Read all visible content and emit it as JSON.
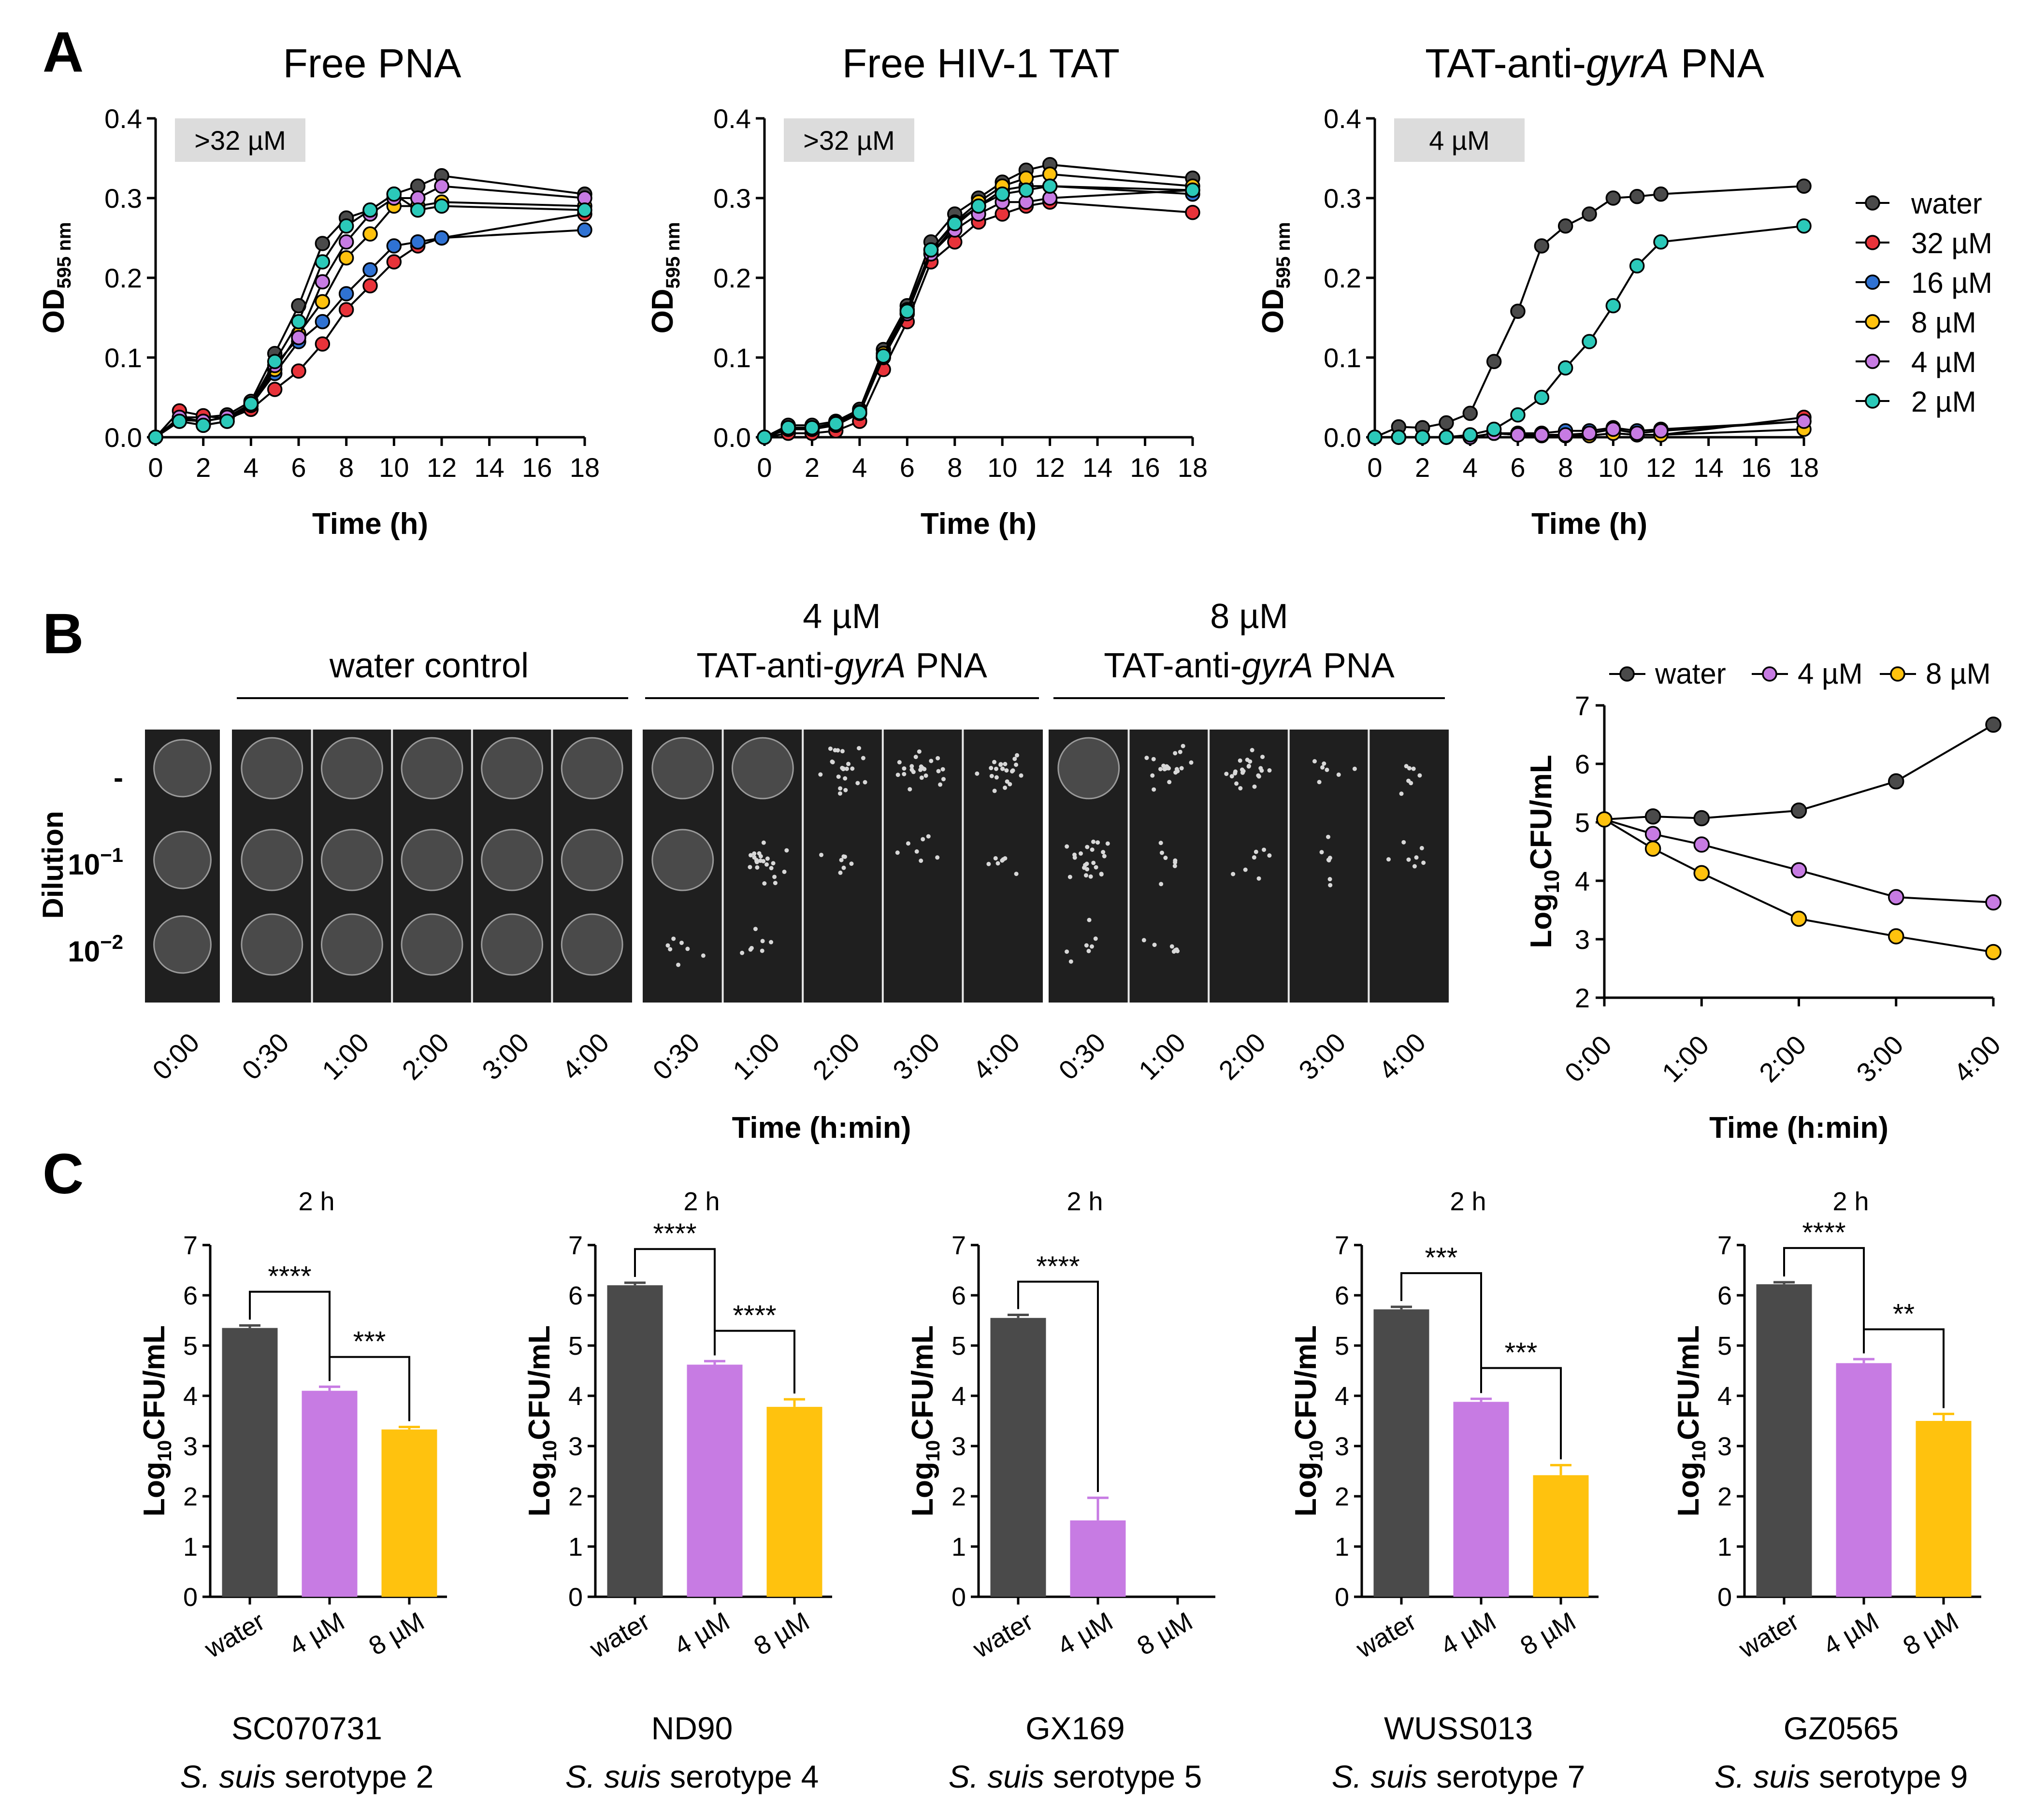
{
  "panels": {
    "A": "A",
    "B": "B",
    "C": "C"
  },
  "colors": {
    "water": "#4a4a4a",
    "c32": "#e8333a",
    "c16": "#2f72d3",
    "c8": "#ffc20e",
    "c4": "#c77be3",
    "c2": "#2bc9b9",
    "axis": "#000000",
    "micbox": "#dcdcdc",
    "plate": "#1f1f1f"
  },
  "legend_A": [
    "water",
    "32 µM",
    "16 µM",
    "8 µM",
    "4 µM",
    "2 µM"
  ],
  "chart_data": [
    {
      "id": "A1",
      "type": "line",
      "title": "Free PNA",
      "annotation": ">32 µM",
      "ylabel_main": "OD",
      "ylabel_sub": "595 nm",
      "xlabel": "Time (h)",
      "x": [
        0,
        1,
        2,
        3,
        4,
        5,
        6,
        7,
        8,
        9,
        10,
        11,
        12,
        18
      ],
      "xticks": [
        0,
        2,
        4,
        6,
        8,
        10,
        12,
        14,
        16,
        18
      ],
      "xlim": [
        0,
        18
      ],
      "ylim": [
        0,
        0.4
      ],
      "yticks": [
        0.0,
        0.1,
        0.2,
        0.3,
        0.4
      ],
      "ytick_labels": [
        "0.0",
        "0.1",
        "0.2",
        "0.3",
        "0.4"
      ],
      "series": [
        {
          "name": "water",
          "values": [
            0,
            0.025,
            0.025,
            0.028,
            0.045,
            0.105,
            0.165,
            0.243,
            0.275,
            0.285,
            0.305,
            0.315,
            0.328,
            0.305
          ]
        },
        {
          "name": "32 µM",
          "values": [
            0,
            0.033,
            0.027,
            0.023,
            0.035,
            0.06,
            0.083,
            0.117,
            0.16,
            0.19,
            0.22,
            0.24,
            0.25,
            0.28
          ]
        },
        {
          "name": "16 µM",
          "values": [
            0,
            0.02,
            0.015,
            0.02,
            0.04,
            0.08,
            0.12,
            0.145,
            0.18,
            0.21,
            0.24,
            0.245,
            0.25,
            0.26
          ]
        },
        {
          "name": "8 µM",
          "values": [
            0,
            0.022,
            0.02,
            0.025,
            0.04,
            0.085,
            0.13,
            0.17,
            0.225,
            0.255,
            0.29,
            0.29,
            0.295,
            0.29
          ]
        },
        {
          "name": "4 µM",
          "values": [
            0,
            0.025,
            0.02,
            0.025,
            0.042,
            0.09,
            0.125,
            0.195,
            0.245,
            0.28,
            0.3,
            0.3,
            0.315,
            0.3
          ]
        },
        {
          "name": "2 µM",
          "values": [
            0,
            0.02,
            0.015,
            0.02,
            0.042,
            0.095,
            0.145,
            0.22,
            0.265,
            0.285,
            0.305,
            0.285,
            0.29,
            0.285
          ]
        }
      ]
    },
    {
      "id": "A2",
      "type": "line",
      "title": "Free HIV-1 TAT",
      "annotation": ">32 µM",
      "ylabel_main": "OD",
      "ylabel_sub": "595 nm",
      "xlabel": "Time (h)",
      "x": [
        0,
        1,
        2,
        3,
        4,
        5,
        6,
        7,
        8,
        9,
        10,
        11,
        12,
        18
      ],
      "xticks": [
        0,
        2,
        4,
        6,
        8,
        10,
        12,
        14,
        16,
        18
      ],
      "xlim": [
        0,
        18
      ],
      "ylim": [
        0,
        0.4
      ],
      "yticks": [
        0.0,
        0.1,
        0.2,
        0.3,
        0.4
      ],
      "ytick_labels": [
        "0.0",
        "0.1",
        "0.2",
        "0.3",
        "0.4"
      ],
      "series": [
        {
          "name": "water",
          "values": [
            0,
            0.015,
            0.015,
            0.02,
            0.035,
            0.11,
            0.165,
            0.245,
            0.28,
            0.3,
            0.32,
            0.335,
            0.342,
            0.325
          ]
        },
        {
          "name": "32 µM",
          "values": [
            0,
            0.005,
            0.005,
            0.008,
            0.02,
            0.085,
            0.145,
            0.22,
            0.245,
            0.27,
            0.28,
            0.29,
            0.295,
            0.282
          ]
        },
        {
          "name": "16 µM",
          "values": [
            0,
            0.01,
            0.01,
            0.015,
            0.03,
            0.1,
            0.155,
            0.23,
            0.265,
            0.29,
            0.31,
            0.315,
            0.315,
            0.305
          ]
        },
        {
          "name": "8 µM",
          "values": [
            0,
            0.012,
            0.012,
            0.018,
            0.032,
            0.105,
            0.16,
            0.235,
            0.27,
            0.295,
            0.315,
            0.325,
            0.33,
            0.315
          ]
        },
        {
          "name": "4 µM",
          "values": [
            0,
            0.01,
            0.01,
            0.015,
            0.03,
            0.1,
            0.155,
            0.23,
            0.26,
            0.28,
            0.295,
            0.295,
            0.3,
            0.31
          ]
        },
        {
          "name": "2 µM",
          "values": [
            0,
            0.012,
            0.012,
            0.017,
            0.031,
            0.102,
            0.158,
            0.235,
            0.268,
            0.29,
            0.305,
            0.31,
            0.315,
            0.31
          ]
        }
      ]
    },
    {
      "id": "A3",
      "type": "line",
      "title": "TAT-anti-gyrA PNA",
      "title_parts": [
        "TAT-anti-",
        "gyrA",
        " PNA"
      ],
      "annotation": "4 µM",
      "ylabel_main": "OD",
      "ylabel_sub": "595 nm",
      "xlabel": "Time (h)",
      "x": [
        0,
        1,
        2,
        3,
        4,
        5,
        6,
        7,
        8,
        9,
        10,
        11,
        12,
        18
      ],
      "xticks": [
        0,
        2,
        4,
        6,
        8,
        10,
        12,
        14,
        16,
        18
      ],
      "xlim": [
        0,
        18
      ],
      "ylim": [
        0,
        0.4
      ],
      "yticks": [
        0.0,
        0.1,
        0.2,
        0.3,
        0.4
      ],
      "ytick_labels": [
        "0.0",
        "0.1",
        "0.2",
        "0.3",
        "0.4"
      ],
      "series": [
        {
          "name": "water",
          "values": [
            0,
            0.013,
            0.012,
            0.018,
            0.03,
            0.095,
            0.158,
            0.24,
            0.265,
            0.28,
            0.3,
            0.302,
            0.305,
            0.315
          ]
        },
        {
          "name": "32 µM",
          "values": [
            0,
            0.0,
            0.0,
            0.0,
            0.0,
            0.005,
            0.003,
            0.003,
            0.002,
            0.002,
            0.005,
            0.003,
            0.003,
            0.025
          ]
        },
        {
          "name": "16 µM",
          "values": [
            0,
            0.0,
            0.0,
            0.0,
            0.0,
            0.005,
            0.005,
            0.005,
            0.008,
            0.008,
            0.012,
            0.008,
            0.01,
            0.02
          ]
        },
        {
          "name": "8 µM",
          "values": [
            0,
            0.0,
            0.0,
            0.0,
            0.0,
            0.005,
            0.003,
            0.002,
            0.002,
            0.002,
            0.005,
            0.003,
            0.003,
            0.01
          ]
        },
        {
          "name": "4 µM",
          "values": [
            0,
            0.0,
            0.0,
            0.0,
            0.0,
            0.005,
            0.003,
            0.003,
            0.003,
            0.005,
            0.01,
            0.005,
            0.008,
            0.02
          ]
        },
        {
          "name": "2 µM",
          "values": [
            0,
            0.0,
            0.0,
            0.0,
            0.003,
            0.01,
            0.028,
            0.05,
            0.087,
            0.12,
            0.165,
            0.215,
            0.245,
            0.265
          ]
        }
      ]
    },
    {
      "id": "B",
      "type": "line",
      "ylabel_main": "Log",
      "ylabel_sub": "10",
      "ylabel_rest": "CFU/mL",
      "xlabel": "Time (h:min)",
      "x": [
        0,
        0.5,
        1,
        2,
        3,
        4
      ],
      "xticks": [
        0,
        1,
        2,
        3,
        4
      ],
      "xtick_labels": [
        "0:00",
        "1:00",
        "2:00",
        "3:00",
        "4:00"
      ],
      "xlim": [
        0,
        4
      ],
      "ylim": [
        2,
        7
      ],
      "yticks": [
        2,
        3,
        4,
        5,
        6,
        7
      ],
      "ytick_labels": [
        "2",
        "3",
        "4",
        "5",
        "6",
        "7"
      ],
      "legend": [
        "water",
        "4 µM",
        "8 µM"
      ],
      "series": [
        {
          "name": "water",
          "values": [
            5.05,
            5.1,
            5.07,
            5.2,
            5.7,
            6.67
          ]
        },
        {
          "name": "4 µM",
          "values": [
            5.05,
            4.8,
            4.62,
            4.18,
            3.72,
            3.63
          ]
        },
        {
          "name": "8 µM",
          "values": [
            5.05,
            4.55,
            4.13,
            3.35,
            3.05,
            2.78
          ]
        }
      ]
    },
    {
      "id": "C1",
      "type": "bar",
      "title": "2 h",
      "strain": "SC070731",
      "serotype": "serotype 2",
      "ylabel_main": "Log",
      "ylabel_sub": "10",
      "ylabel_rest": "CFU/mL",
      "categories": [
        "water",
        "4 µM",
        "8 µM"
      ],
      "values": [
        5.35,
        4.1,
        3.33
      ],
      "errors": [
        0.05,
        0.08,
        0.05
      ],
      "ylim": [
        0,
        7
      ],
      "yticks": [
        0,
        1,
        2,
        3,
        4,
        5,
        6,
        7
      ],
      "ytick_labels": [
        "0",
        "1",
        "2",
        "3",
        "4",
        "5",
        "6",
        "7"
      ],
      "significance": [
        {
          "from": 0,
          "to": 1,
          "label": "****"
        },
        {
          "from": 1,
          "to": 2,
          "label": "***"
        }
      ]
    },
    {
      "id": "C2",
      "type": "bar",
      "title": "2 h",
      "strain": "ND90",
      "serotype": "serotype 4",
      "ylabel_main": "Log",
      "ylabel_sub": "10",
      "ylabel_rest": "CFU/mL",
      "categories": [
        "water",
        "4 µM",
        "8 µM"
      ],
      "values": [
        6.2,
        4.62,
        3.78
      ],
      "errors": [
        0.05,
        0.07,
        0.15
      ],
      "ylim": [
        0,
        7
      ],
      "yticks": [
        0,
        1,
        2,
        3,
        4,
        5,
        6,
        7
      ],
      "ytick_labels": [
        "0",
        "1",
        "2",
        "3",
        "4",
        "5",
        "6",
        "7"
      ],
      "significance": [
        {
          "from": 0,
          "to": 1,
          "label": "****"
        },
        {
          "from": 1,
          "to": 2,
          "label": "****"
        }
      ]
    },
    {
      "id": "C3",
      "type": "bar",
      "title": "2 h",
      "strain": "GX169",
      "serotype": "serotype 5",
      "ylabel_main": "Log",
      "ylabel_sub": "10",
      "ylabel_rest": "CFU/mL",
      "categories": [
        "water",
        "4 µM",
        "8 µM"
      ],
      "values": [
        5.55,
        1.52,
        0
      ],
      "errors": [
        0.06,
        0.45,
        0
      ],
      "ylim": [
        0,
        7
      ],
      "yticks": [
        0,
        1,
        2,
        3,
        4,
        5,
        6,
        7
      ],
      "ytick_labels": [
        "0",
        "1",
        "2",
        "3",
        "4",
        "5",
        "6",
        "7"
      ],
      "significance": [
        {
          "from": 0,
          "to": 1,
          "label": "****"
        }
      ]
    },
    {
      "id": "C4",
      "type": "bar",
      "title": "2 h",
      "strain": "WUSS013",
      "serotype": "serotype 7",
      "ylabel_main": "Log",
      "ylabel_sub": "10",
      "ylabel_rest": "CFU/mL",
      "categories": [
        "water",
        "4 µM",
        "8 µM"
      ],
      "values": [
        5.72,
        3.88,
        2.42
      ],
      "errors": [
        0.05,
        0.06,
        0.2
      ],
      "ylim": [
        0,
        7
      ],
      "yticks": [
        0,
        1,
        2,
        3,
        4,
        5,
        6,
        7
      ],
      "ytick_labels": [
        "0",
        "1",
        "2",
        "3",
        "4",
        "5",
        "6",
        "7"
      ],
      "significance": [
        {
          "from": 0,
          "to": 1,
          "label": "***"
        },
        {
          "from": 1,
          "to": 2,
          "label": "***"
        }
      ]
    },
    {
      "id": "C5",
      "type": "bar",
      "title": "2 h",
      "strain": "GZ0565",
      "serotype": "serotype 9",
      "ylabel_main": "Log",
      "ylabel_sub": "10",
      "ylabel_rest": "CFU/mL",
      "categories": [
        "water",
        "4 µM",
        "8 µM"
      ],
      "values": [
        6.22,
        4.65,
        3.5
      ],
      "errors": [
        0.04,
        0.08,
        0.14
      ],
      "ylim": [
        0,
        7
      ],
      "yticks": [
        0,
        1,
        2,
        3,
        4,
        5,
        6,
        7
      ],
      "ytick_labels": [
        "0",
        "1",
        "2",
        "3",
        "4",
        "5",
        "6",
        "7"
      ],
      "significance": [
        {
          "from": 0,
          "to": 1,
          "label": "****"
        },
        {
          "from": 1,
          "to": 2,
          "label": "**"
        }
      ]
    }
  ],
  "species": "S. suis",
  "panelB": {
    "groups": [
      "water control",
      "4 µM",
      "TAT-anti-gyrA PNA",
      "8 µM",
      "TAT-anti-gyrA PNA"
    ],
    "group_header_4": {
      "line1": "4 µM",
      "line2_pre": "TAT-anti-",
      "line2_ital": "gyrA",
      "line2_post": " PNA"
    },
    "group_header_8": {
      "line1": "8 µM",
      "line2_pre": "TAT-anti-",
      "line2_ital": "gyrA",
      "line2_post": " PNA"
    },
    "dilution_title": "Dilution",
    "dilutions": [
      {
        "base": "-",
        "exp": ""
      },
      {
        "base": "10",
        "exp": "−1"
      },
      {
        "base": "10",
        "exp": "−2"
      }
    ],
    "time_labels": [
      "0:00",
      "0:30",
      "1:00",
      "2:00",
      "3:00",
      "4:00",
      "0:30",
      "1:00",
      "2:00",
      "3:00",
      "4:00",
      "0:30",
      "1:00",
      "2:00",
      "3:00",
      "4:00"
    ],
    "xlabel": "Time (h:min)"
  }
}
